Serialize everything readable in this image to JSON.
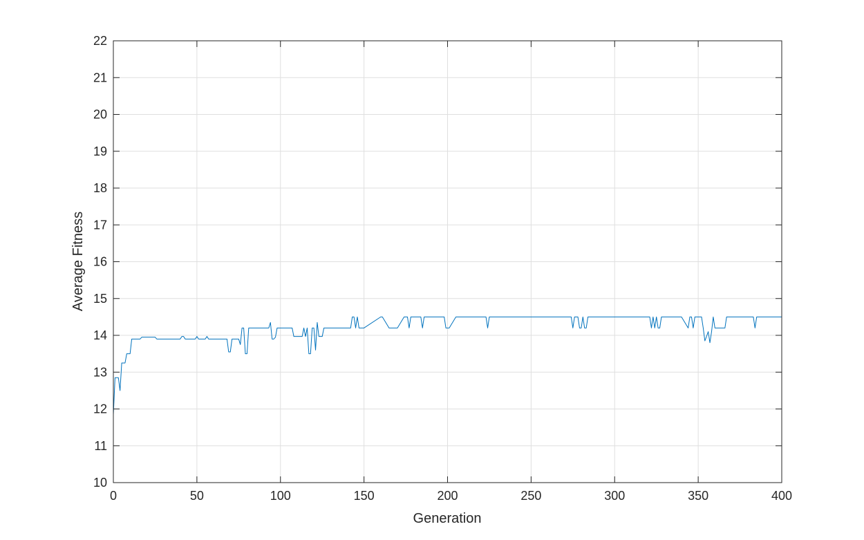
{
  "chart_data": {
    "type": "line",
    "title": "",
    "xlabel": "Generation",
    "ylabel": "Average Fitness",
    "xlim": [
      0,
      400
    ],
    "ylim": [
      10,
      22
    ],
    "xticks": [
      0,
      50,
      100,
      150,
      200,
      250,
      300,
      350,
      400
    ],
    "yticks": [
      10,
      11,
      12,
      13,
      14,
      15,
      16,
      17,
      18,
      19,
      20,
      21,
      22
    ],
    "grid": true,
    "legend": "none",
    "series": [
      {
        "color": "#0072BD",
        "x": [
          0,
          1,
          2,
          3,
          4,
          5,
          6,
          7,
          8,
          9,
          10,
          11,
          12,
          13,
          14,
          15,
          16,
          17,
          18,
          19,
          20,
          25,
          26,
          30,
          40,
          41,
          42,
          43,
          44,
          48,
          49,
          50,
          51,
          54,
          55,
          56,
          57,
          60,
          68,
          69,
          70,
          71,
          74,
          75,
          76,
          77,
          78,
          79,
          80,
          81,
          82,
          90,
          92,
          93,
          94,
          95,
          96,
          97,
          98,
          100,
          106,
          107,
          108,
          112,
          113,
          114,
          115,
          116,
          117,
          118,
          119,
          120,
          121,
          122,
          123,
          124,
          125,
          126,
          127,
          128,
          130,
          135,
          140,
          142,
          143,
          144,
          145,
          146,
          147,
          150,
          160,
          161,
          165,
          166,
          170,
          174,
          175,
          176,
          177,
          178,
          180,
          183,
          184,
          185,
          186,
          190,
          195,
          198,
          199,
          200,
          201,
          205,
          206,
          210,
          220,
          222,
          223,
          224,
          225,
          230,
          250,
          270,
          274,
          275,
          276,
          277,
          278,
          279,
          280,
          281,
          282,
          283,
          284,
          285,
          300,
          320,
          321,
          322,
          323,
          324,
          325,
          326,
          327,
          328,
          329,
          330,
          340,
          344,
          345,
          346,
          347,
          348,
          349,
          350,
          352,
          353,
          354,
          355,
          356,
          357,
          358,
          359,
          360,
          361,
          362,
          363,
          364,
          366,
          367,
          368,
          370,
          380,
          383,
          384,
          385,
          386,
          390,
          400
        ],
        "y": [
          11.85,
          12.85,
          12.85,
          12.85,
          12.5,
          13.25,
          13.25,
          13.25,
          13.5,
          13.5,
          13.5,
          13.9,
          13.9,
          13.9,
          13.9,
          13.9,
          13.9,
          13.95,
          13.95,
          13.95,
          13.95,
          13.95,
          13.9,
          13.9,
          13.9,
          13.97,
          13.97,
          13.9,
          13.9,
          13.9,
          13.9,
          13.97,
          13.9,
          13.9,
          13.9,
          13.97,
          13.9,
          13.9,
          13.9,
          13.55,
          13.55,
          13.9,
          13.9,
          13.9,
          13.75,
          14.2,
          14.2,
          13.5,
          13.5,
          14.2,
          14.2,
          14.2,
          14.2,
          14.2,
          14.35,
          13.9,
          13.9,
          13.95,
          14.2,
          14.2,
          14.2,
          14.2,
          13.97,
          13.97,
          13.97,
          14.2,
          13.97,
          14.2,
          13.5,
          13.5,
          14.2,
          14.2,
          13.6,
          14.35,
          13.97,
          13.97,
          13.97,
          14.2,
          14.2,
          14.2,
          14.2,
          14.2,
          14.2,
          14.2,
          14.5,
          14.5,
          14.2,
          14.5,
          14.2,
          14.2,
          14.5,
          14.5,
          14.2,
          14.2,
          14.2,
          14.5,
          14.5,
          14.5,
          14.2,
          14.5,
          14.5,
          14.5,
          14.5,
          14.2,
          14.5,
          14.5,
          14.5,
          14.5,
          14.2,
          14.2,
          14.2,
          14.5,
          14.5,
          14.5,
          14.5,
          14.5,
          14.5,
          14.2,
          14.5,
          14.5,
          14.5,
          14.5,
          14.5,
          14.2,
          14.5,
          14.5,
          14.5,
          14.2,
          14.2,
          14.5,
          14.2,
          14.2,
          14.5,
          14.5,
          14.5,
          14.5,
          14.5,
          14.2,
          14.5,
          14.2,
          14.5,
          14.2,
          14.2,
          14.5,
          14.5,
          14.5,
          14.5,
          14.2,
          14.5,
          14.5,
          14.2,
          14.5,
          14.5,
          14.5,
          14.5,
          14.2,
          13.85,
          13.97,
          14.1,
          13.8,
          14.1,
          14.5,
          14.2,
          14.2,
          14.2,
          14.2,
          14.2,
          14.2,
          14.5,
          14.5,
          14.5,
          14.5,
          14.5,
          14.2,
          14.5,
          14.5,
          14.5,
          14.5
        ]
      }
    ]
  }
}
